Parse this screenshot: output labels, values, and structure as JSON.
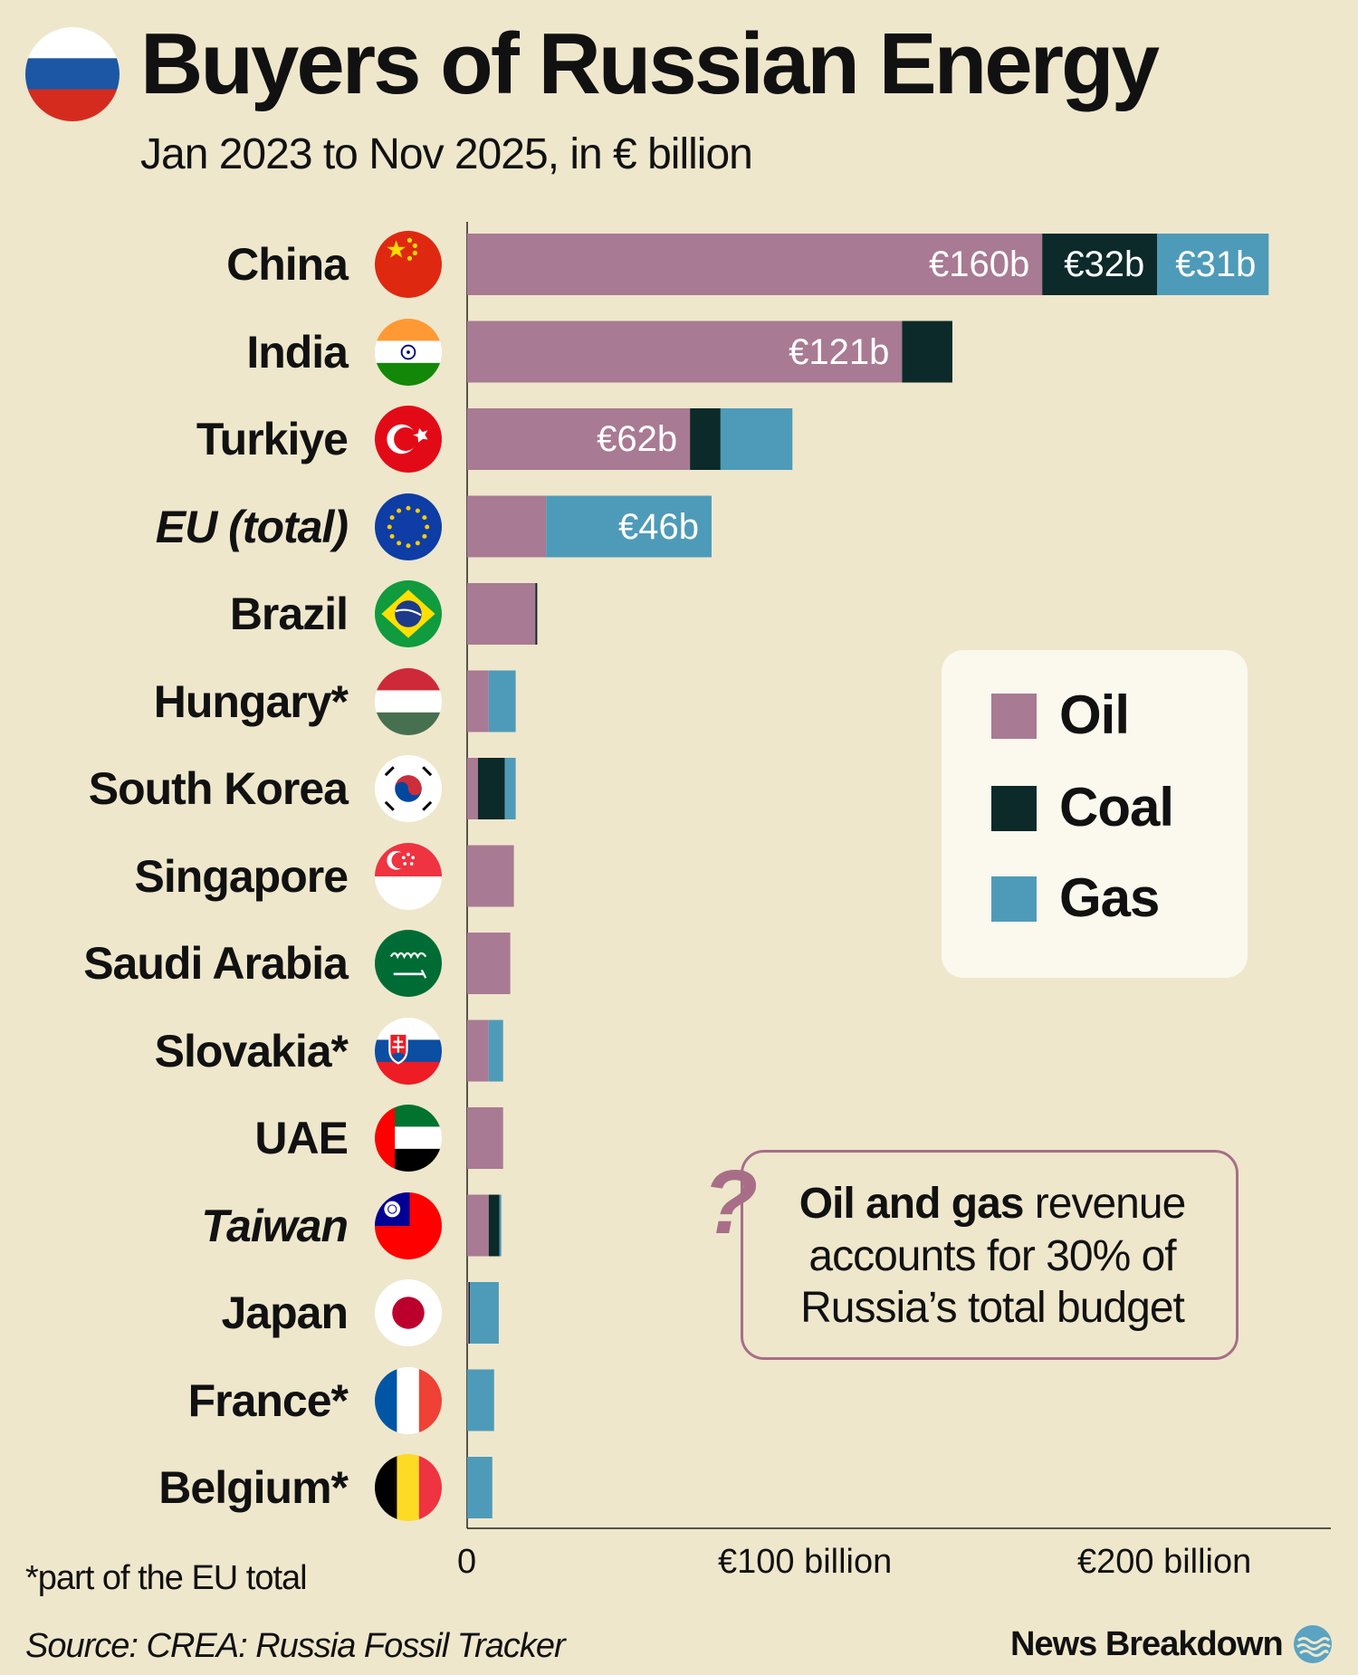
{
  "header": {
    "title": "Buyers of Russian Energy",
    "subtitle": "Jan 2023 to Nov 2025, in € billion",
    "flag_icon": "russia-flag-icon"
  },
  "colors": {
    "background": "#EEE7CC",
    "oil": "#A97A93",
    "coal": "#0C2A2A",
    "gas": "#4E9BB9",
    "accent": "#A86E88"
  },
  "legend": {
    "oil": "Oil",
    "coal": "Coal",
    "gas": "Gas"
  },
  "callout": {
    "bold_text": "Oil and gas",
    "text_1": " revenue",
    "text_2": "accounts for 30% of",
    "text_3": "Russia’s total budget",
    "icon": "question-mark-icon"
  },
  "footer": {
    "footnote": "*part of the EU total",
    "source": "Source: CREA: Russia Fossil Tracker",
    "brand": "News Breakdown",
    "brand_icon": "waves-logo-icon"
  },
  "chart_data": {
    "type": "bar",
    "orientation": "horizontal",
    "stacked": true,
    "xlim": [
      0,
      240
    ],
    "ticks": [
      {
        "value": 0,
        "label": "0"
      },
      {
        "value": 100,
        "label": "€100 billion"
      },
      {
        "value": 200,
        "label": "€200 billion"
      }
    ],
    "categories": [
      "China",
      "India",
      "Turkiye",
      "EU (total)",
      "Brazil",
      "Hungary*",
      "South Korea",
      "Singapore",
      "Saudi Arabia",
      "Slovakia*",
      "UAE",
      "Taiwan",
      "Japan",
      "France*",
      "Belgium*"
    ],
    "italic_categories": [
      "EU (total)",
      "Taiwan"
    ],
    "flags": [
      "china-flag-icon",
      "india-flag-icon",
      "turkiye-flag-icon",
      "eu-flag-icon",
      "brazil-flag-icon",
      "hungary-flag-icon",
      "south-korea-flag-icon",
      "singapore-flag-icon",
      "saudi-arabia-flag-icon",
      "slovakia-flag-icon",
      "uae-flag-icon",
      "taiwan-flag-icon",
      "japan-flag-icon",
      "france-flag-icon",
      "belgium-flag-icon"
    ],
    "series": [
      {
        "name": "Oil",
        "values": [
          160,
          121,
          62,
          22,
          19,
          6,
          3,
          13,
          12,
          6,
          10,
          6,
          0.4,
          0,
          0
        ]
      },
      {
        "name": "Coal",
        "values": [
          32,
          14,
          8.5,
          0,
          0.5,
          0,
          7.5,
          0,
          0,
          0,
          0,
          3,
          0.4,
          0,
          0
        ]
      },
      {
        "name": "Gas",
        "values": [
          31,
          0,
          20,
          46,
          0,
          7.5,
          3,
          0,
          0,
          4,
          0,
          0.5,
          8,
          7.5,
          7
        ]
      }
    ],
    "data_labels": [
      {
        "row": 0,
        "series": 0,
        "label": "€160b"
      },
      {
        "row": 0,
        "series": 1,
        "label": "€32b"
      },
      {
        "row": 0,
        "series": 2,
        "label": "€31b"
      },
      {
        "row": 1,
        "series": 0,
        "label": "€121b"
      },
      {
        "row": 2,
        "series": 0,
        "label": "€62b"
      },
      {
        "row": 3,
        "series": 2,
        "label": "€46b"
      }
    ]
  }
}
